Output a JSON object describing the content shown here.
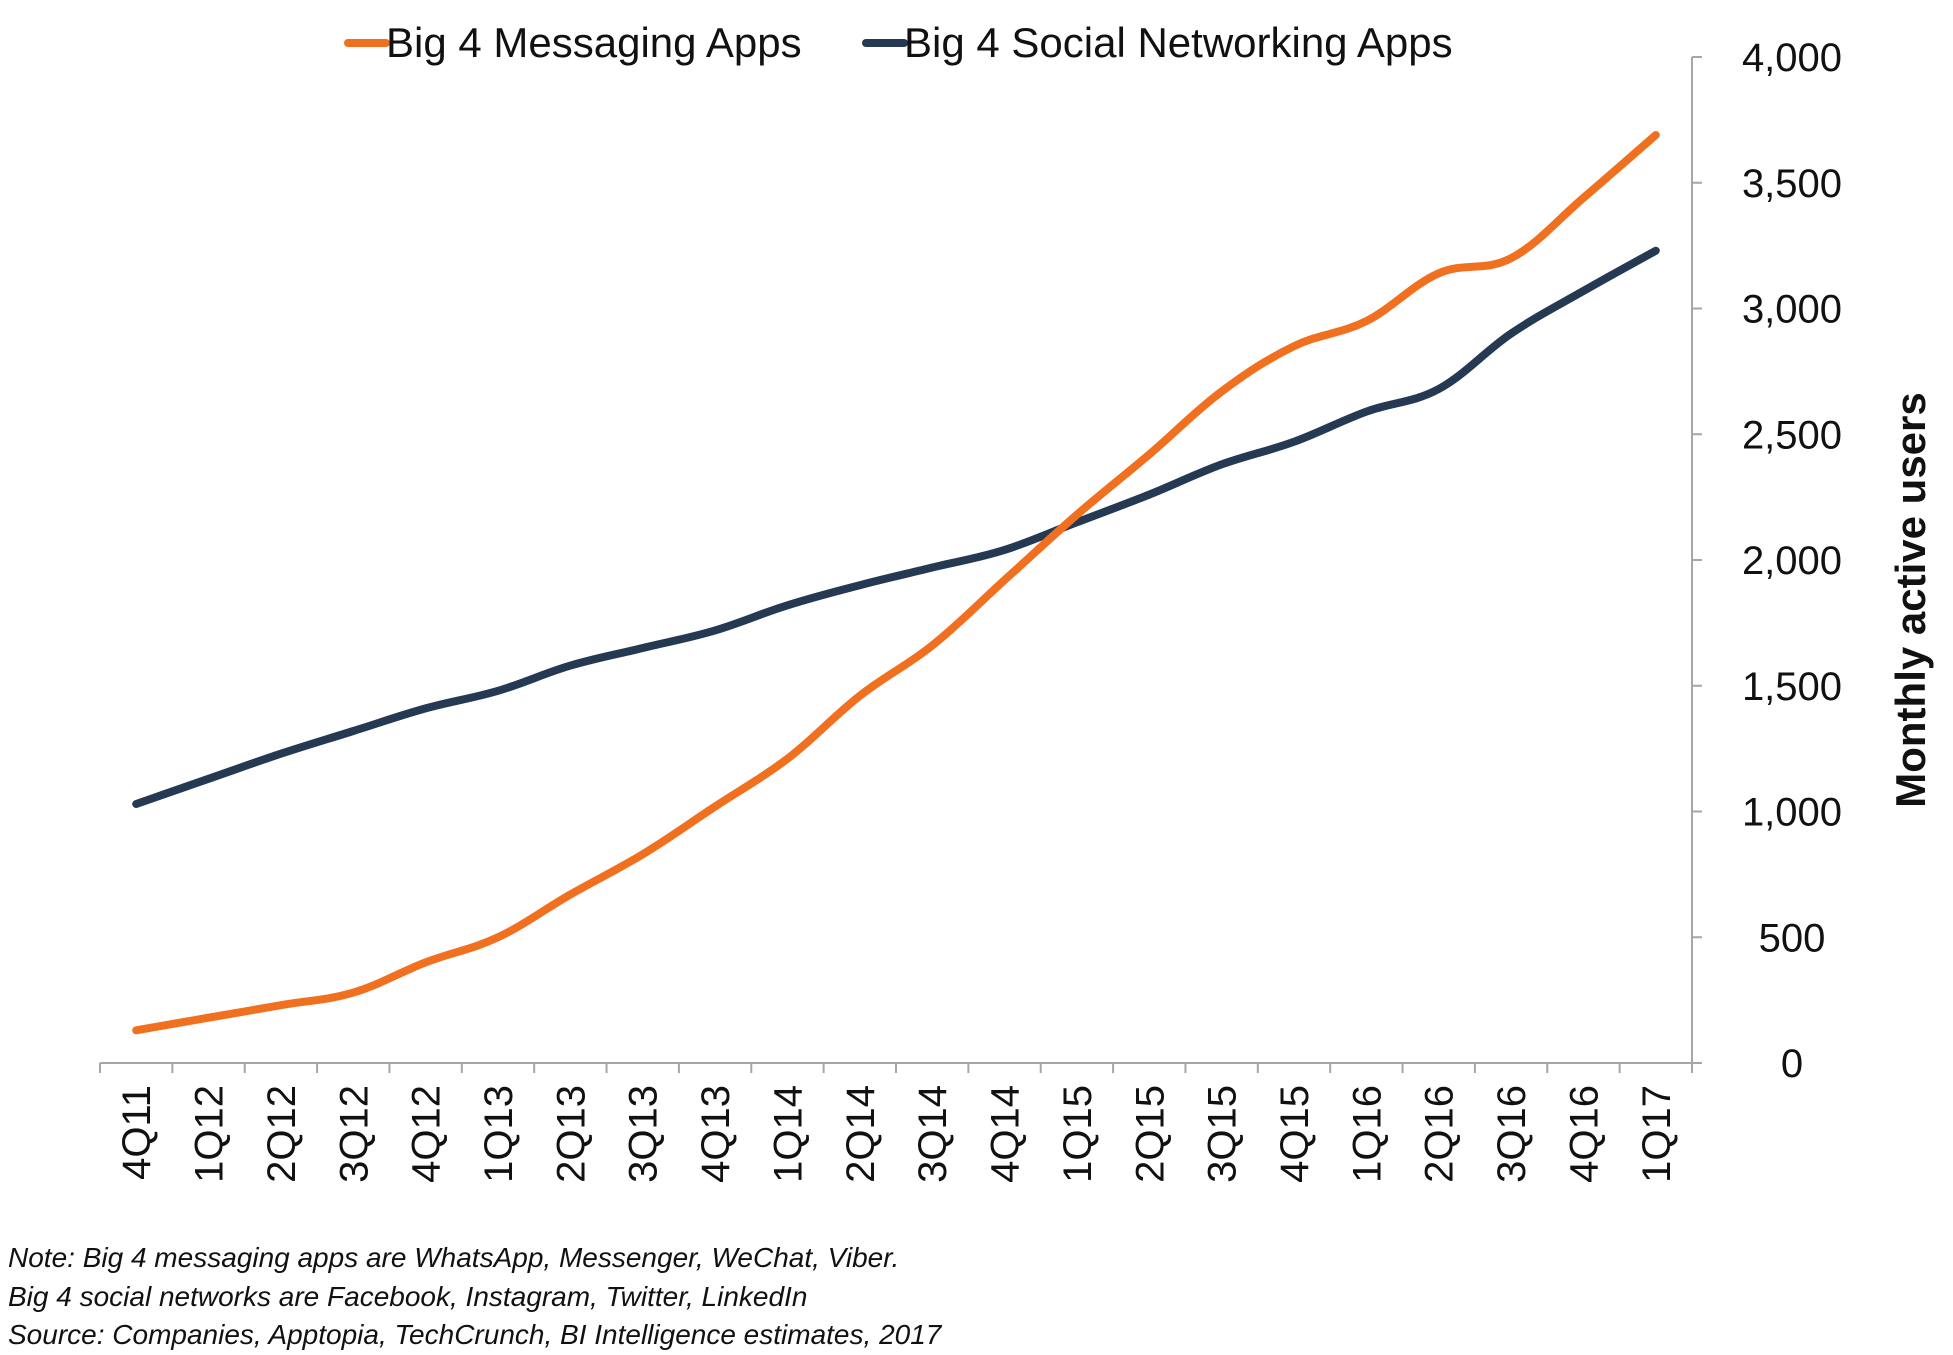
{
  "chart_data": {
    "type": "line",
    "title": "",
    "xlabel": "",
    "ylabel": "Monthly active users",
    "categories": [
      "4Q11",
      "1Q12",
      "2Q12",
      "3Q12",
      "4Q12",
      "1Q13",
      "2Q13",
      "3Q13",
      "4Q13",
      "1Q14",
      "2Q14",
      "3Q14",
      "4Q14",
      "1Q15",
      "2Q15",
      "3Q15",
      "4Q15",
      "1Q16",
      "2Q16",
      "3Q16",
      "4Q16",
      "1Q17"
    ],
    "y_ticks": [
      "4,000",
      "3,500",
      "3,000",
      "2,500",
      "2,000",
      "1,500",
      "1,000",
      "500",
      "0"
    ],
    "ylim": [
      0,
      4000
    ],
    "grid": false,
    "legend": "top",
    "series": [
      {
        "name": "Big 4 Messaging Apps",
        "color": "#f07020",
        "values": [
          130,
          180,
          230,
          280,
          400,
          500,
          670,
          830,
          1020,
          1210,
          1460,
          1660,
          1920,
          2180,
          2420,
          2670,
          2850,
          2950,
          3140,
          3200,
          3440,
          3690
        ]
      },
      {
        "name": "Big 4 Social Networking Apps",
        "color": "#253a52",
        "values": [
          1030,
          1130,
          1230,
          1320,
          1410,
          1480,
          1580,
          1650,
          1720,
          1820,
          1900,
          1970,
          2040,
          2150,
          2260,
          2380,
          2470,
          2590,
          2680,
          2900,
          3070,
          3230
        ]
      }
    ]
  },
  "notes": [
    "Note: Big 4 messaging apps are WhatsApp, Messenger, WeChat, Viber.",
    "Big 4 social networks are Facebook, Instagram, Twitter, LinkedIn",
    "Source: Companies,  Apptopia, TechCrunch,  BI Intelligence estimates, 2017"
  ],
  "colors": {
    "axis": "#a6a6a6",
    "text": "#111111"
  }
}
